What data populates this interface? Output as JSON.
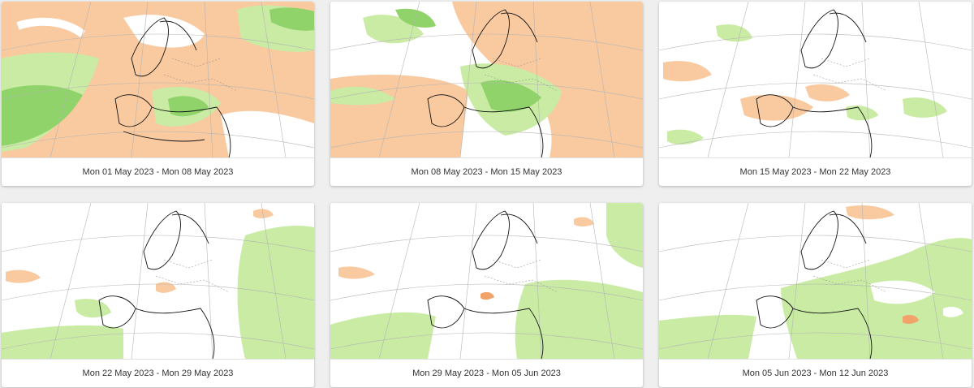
{
  "colors": {
    "warm": "#f9c99f",
    "warm_strong": "#f2a36a",
    "cool": "#c9eba4",
    "cool_strong": "#8fd36a",
    "coast": "#111111",
    "border": "#888888",
    "grid": "#b5b5b5"
  },
  "cards": [
    {
      "label": "Mon 01 May 2023 - Mon 08 May 2023"
    },
    {
      "label": "Mon 08 May 2023 - Mon 15 May 2023"
    },
    {
      "label": "Mon 15 May 2023 - Mon 22 May 2023"
    },
    {
      "label": "Mon 22 May 2023 - Mon 29 May 2023"
    },
    {
      "label": "Mon 29 May 2023 - Mon 05 Jun 2023"
    },
    {
      "label": "Mon 05 Jun 2023 - Mon 12 Jun 2023"
    }
  ]
}
